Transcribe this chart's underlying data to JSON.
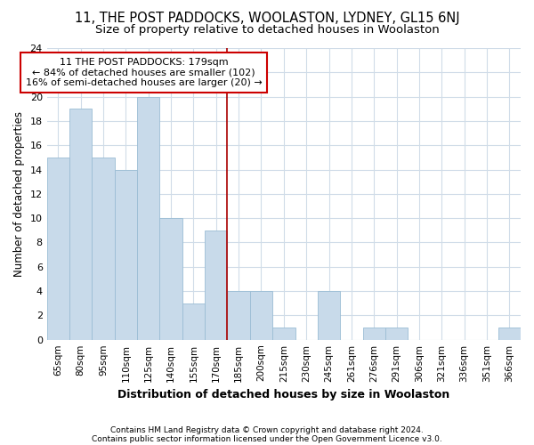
{
  "title": "11, THE POST PADDOCKS, WOOLASTON, LYDNEY, GL15 6NJ",
  "subtitle": "Size of property relative to detached houses in Woolaston",
  "xlabel": "Distribution of detached houses by size in Woolaston",
  "ylabel": "Number of detached properties",
  "categories": [
    "65sqm",
    "80sqm",
    "95sqm",
    "110sqm",
    "125sqm",
    "140sqm",
    "155sqm",
    "170sqm",
    "185sqm",
    "200sqm",
    "215sqm",
    "230sqm",
    "245sqm",
    "261sqm",
    "276sqm",
    "291sqm",
    "306sqm",
    "321sqm",
    "336sqm",
    "351sqm",
    "366sqm"
  ],
  "values": [
    15,
    19,
    15,
    14,
    20,
    10,
    3,
    9,
    4,
    4,
    1,
    0,
    4,
    0,
    1,
    1,
    0,
    0,
    0,
    0,
    1
  ],
  "bar_color": "#c8daea",
  "bar_edgecolor": "#9bbdd4",
  "vline_color": "#aa0000",
  "annotation_text": "11 THE POST PADDOCKS: 179sqm\n← 84% of detached houses are smaller (102)\n16% of semi-detached houses are larger (20) →",
  "annotation_box_edgecolor": "#cc0000",
  "ylim": [
    0,
    24
  ],
  "yticks": [
    0,
    2,
    4,
    6,
    8,
    10,
    12,
    14,
    16,
    18,
    20,
    22,
    24
  ],
  "footer1": "Contains HM Land Registry data © Crown copyright and database right 2024.",
  "footer2": "Contains public sector information licensed under the Open Government Licence v3.0.",
  "bg_color": "#ffffff",
  "plot_bg_color": "#ffffff",
  "title_fontsize": 10.5,
  "subtitle_fontsize": 9.5,
  "grid_color": "#d0dce8"
}
